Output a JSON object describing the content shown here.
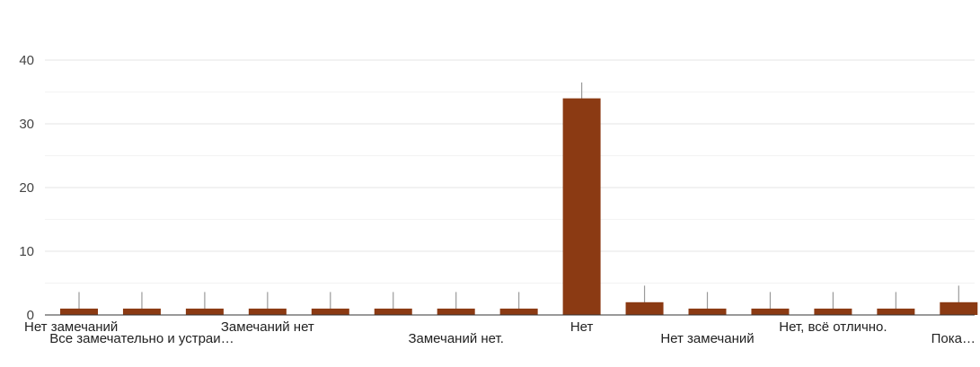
{
  "chart_data": {
    "type": "bar",
    "title": "",
    "xlabel": "",
    "ylabel": "",
    "ylim": [
      0,
      40
    ],
    "yticks": [
      0,
      10,
      20,
      30,
      40
    ],
    "grid": true,
    "bar_color": "#8b3a13",
    "whisker_color": "#9a9a9a",
    "categories": [
      "Нет замечаний",
      "Все замечательно и устраи…",
      "",
      "Замечаний нет",
      "",
      "",
      "Замечаний нет.",
      "",
      "Нет",
      "",
      "Нет замечаний",
      "",
      "Нет, всё отлично.",
      "",
      "Пока…"
    ],
    "values": [
      1,
      1,
      1,
      1,
      1,
      1,
      1,
      1,
      34,
      2,
      1,
      1,
      1,
      1,
      2
    ],
    "whisker_tops": [
      3.6,
      3.6,
      3.6,
      3.6,
      3.6,
      3.6,
      3.6,
      3.6,
      36.5,
      4.6,
      3.6,
      3.6,
      3.6,
      3.6,
      4.6
    ]
  }
}
